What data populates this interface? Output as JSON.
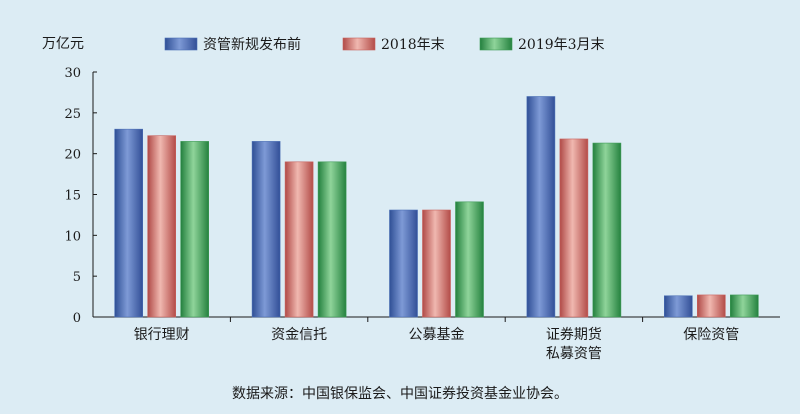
{
  "chart_data": {
    "type": "bar",
    "ylabel": "万亿元",
    "ylim": [
      0,
      30
    ],
    "yticks": [
      0,
      5,
      10,
      15,
      20,
      25,
      30
    ],
    "grid": false,
    "legend_position": "top",
    "categories": [
      [
        "银行理财"
      ],
      [
        "资金信托"
      ],
      [
        "公募基金"
      ],
      [
        "证券期货",
        "私募资管"
      ],
      [
        "保险资管"
      ]
    ],
    "series": [
      {
        "name": "资管新规发布前",
        "color": "#4a6fb5",
        "values": [
          23.0,
          21.5,
          13.1,
          27.0,
          2.6
        ]
      },
      {
        "name": "2018年末",
        "color": "#c9615c",
        "values": [
          22.2,
          19.0,
          13.1,
          21.8,
          2.7
        ]
      },
      {
        "name": "2019年3月末",
        "color": "#3d9a55",
        "values": [
          21.5,
          19.0,
          14.1,
          21.3,
          2.7
        ]
      }
    ],
    "source": "数据来源：中国银保监会、中国证券投资基金业协会。"
  }
}
